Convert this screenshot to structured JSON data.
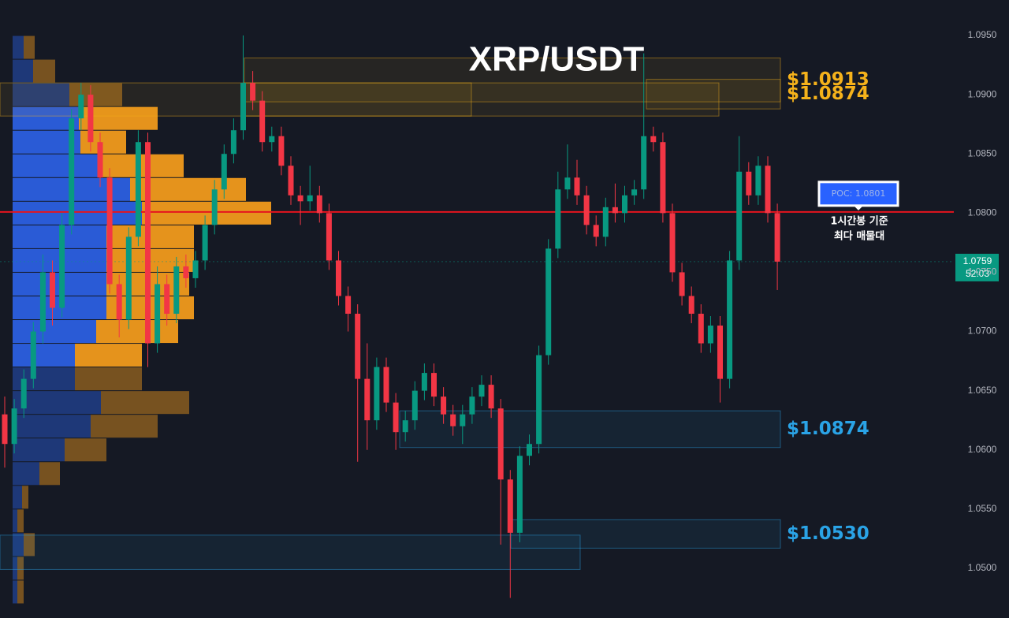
{
  "chart_data": {
    "type": "candlestick",
    "title": "XRP/USDT",
    "ylim": [
      1.0458,
      1.098
    ],
    "yticks": [
      {
        "value": 1.05,
        "label": "1.0500"
      },
      {
        "value": 1.055,
        "label": "1.0550"
      },
      {
        "value": 1.06,
        "label": "1.0600"
      },
      {
        "value": 1.065,
        "label": "1.0650"
      },
      {
        "value": 1.07,
        "label": "1.0700"
      },
      {
        "value": 1.075,
        "label": "1.0750"
      },
      {
        "value": 1.08,
        "label": "1.0800"
      },
      {
        "value": 1.085,
        "label": "1.0850"
      },
      {
        "value": 1.09,
        "label": "1.0900"
      },
      {
        "value": 1.095,
        "label": "1.0950"
      }
    ],
    "grid": false,
    "up_color": "#089981",
    "down_color": "#f23645",
    "open": [
      1.063,
      1.0605,
      1.0635,
      1.066,
      1.07,
      1.075,
      1.072,
      1.079,
      1.088,
      1.09,
      1.086,
      1.083,
      1.074,
      1.071,
      1.078,
      1.086,
      1.069,
      1.074,
      1.0715,
      1.0755,
      1.0745,
      1.076,
      1.079,
      1.082,
      1.085,
      1.087,
      1.091,
      1.0895,
      1.086,
      1.0865,
      1.084,
      1.0815,
      1.081,
      1.0815,
      1.08,
      1.076,
      1.073,
      1.0715,
      1.066,
      1.0625,
      1.067,
      1.064,
      1.0615,
      1.0625,
      1.065,
      1.0665,
      1.0645,
      1.063,
      1.062,
      1.063,
      1.0645,
      1.0655,
      1.0635,
      1.0575,
      1.053,
      1.0595,
      1.0605,
      1.068,
      1.077,
      1.082,
      1.083,
      1.0815,
      1.079,
      1.078,
      1.0805,
      1.08,
      1.0815,
      1.082,
      1.0865,
      1.086,
      1.08,
      1.075,
      1.073,
      1.0715,
      1.069,
      1.0705,
      1.066,
      1.076,
      1.0835,
      1.0815,
      1.084,
      1.08
    ],
    "high": [
      1.0645,
      1.0643,
      1.0668,
      1.0708,
      1.0765,
      1.076,
      1.08,
      1.0888,
      1.091,
      1.0908,
      1.0868,
      1.0838,
      1.0748,
      1.0788,
      1.087,
      1.0868,
      1.0755,
      1.0748,
      1.0763,
      1.0765,
      1.0768,
      1.0798,
      1.0828,
      1.0858,
      1.088,
      1.095,
      1.092,
      1.0903,
      1.0873,
      1.0873,
      1.0848,
      1.0823,
      1.084,
      1.0823,
      1.0808,
      1.0768,
      1.0738,
      1.0723,
      1.069,
      1.0678,
      1.0678,
      1.0648,
      1.0633,
      1.0658,
      1.0673,
      1.0673,
      1.0653,
      1.0638,
      1.0638,
      1.0653,
      1.0663,
      1.0663,
      1.0643,
      1.0583,
      1.0603,
      1.0613,
      1.0688,
      1.0778,
      1.0835,
      1.0858,
      1.0845,
      1.0823,
      1.0798,
      1.0813,
      1.0825,
      1.0823,
      1.0828,
      1.0935,
      1.0873,
      1.0868,
      1.0808,
      1.0758,
      1.0738,
      1.0723,
      1.0713,
      1.0713,
      1.0768,
      1.0865,
      1.0843,
      1.0848,
      1.0848,
      1.0808
    ],
    "low": [
      1.0585,
      1.0597,
      1.0627,
      1.0652,
      1.069,
      1.0705,
      1.0712,
      1.0782,
      1.087,
      1.0852,
      1.0822,
      1.0732,
      1.0695,
      1.0702,
      1.0772,
      1.067,
      1.0682,
      1.0705,
      1.0707,
      1.0737,
      1.0737,
      1.0752,
      1.0782,
      1.0812,
      1.0842,
      1.0862,
      1.0887,
      1.0852,
      1.0852,
      1.0832,
      1.0807,
      1.079,
      1.0802,
      1.0792,
      1.0752,
      1.0722,
      1.07,
      1.059,
      1.06,
      1.0617,
      1.0632,
      1.06,
      1.0607,
      1.0617,
      1.0642,
      1.0637,
      1.0622,
      1.0612,
      1.0605,
      1.0622,
      1.0637,
      1.0627,
      1.052,
      1.0475,
      1.0522,
      1.0587,
      1.0597,
      1.0672,
      1.0762,
      1.0812,
      1.0807,
      1.0782,
      1.0772,
      1.0772,
      1.0792,
      1.0792,
      1.0807,
      1.0812,
      1.0852,
      1.0792,
      1.0742,
      1.0722,
      1.0707,
      1.0682,
      1.0682,
      1.064,
      1.0652,
      1.0752,
      1.0807,
      1.0807,
      1.0792,
      1.0735
    ],
    "close": [
      1.0605,
      1.0635,
      1.066,
      1.07,
      1.075,
      1.072,
      1.079,
      1.088,
      1.09,
      1.086,
      1.083,
      1.074,
      1.071,
      1.078,
      1.086,
      1.069,
      1.074,
      1.0715,
      1.0755,
      1.0745,
      1.076,
      1.079,
      1.082,
      1.085,
      1.087,
      1.091,
      1.0895,
      1.086,
      1.0865,
      1.084,
      1.0815,
      1.081,
      1.0815,
      1.08,
      1.076,
      1.073,
      1.0715,
      1.066,
      1.0625,
      1.067,
      1.064,
      1.0615,
      1.0625,
      1.065,
      1.0665,
      1.0645,
      1.063,
      1.062,
      1.063,
      1.0645,
      1.0655,
      1.0635,
      1.0575,
      1.053,
      1.0595,
      1.0605,
      1.068,
      1.077,
      1.082,
      1.083,
      1.0815,
      1.079,
      1.078,
      1.0805,
      1.08,
      1.0815,
      1.082,
      1.0865,
      1.086,
      1.08,
      1.075,
      1.073,
      1.0715,
      1.069,
      1.0705,
      1.066,
      1.076,
      1.0835,
      1.0815,
      1.084,
      1.08,
      1.0759
    ],
    "volume_profile": {
      "bins": [
        1.095,
        1.093,
        1.091,
        1.089,
        1.087,
        1.085,
        1.083,
        1.081,
        1.079,
        1.077,
        1.075,
        1.073,
        1.071,
        1.069,
        1.067,
        1.065,
        1.063,
        1.061,
        1.059,
        1.057,
        1.055,
        1.053,
        1.051,
        1.049,
        1.047
      ],
      "buy": [
        14,
        26,
        72,
        84,
        86,
        112,
        149,
        164,
        119,
        119,
        119,
        119,
        106,
        79,
        79,
        112,
        99,
        66,
        34,
        12,
        6,
        14,
        6,
        6
      ],
      "sell": [
        14,
        28,
        67,
        100,
        58,
        105,
        147,
        164,
        111,
        111,
        105,
        111,
        104,
        85,
        85,
        112,
        85,
        53,
        26,
        8,
        8,
        14,
        8,
        8
      ],
      "value_area": [
        1.067,
        1.089
      ],
      "buy_color": "#2b5fe0",
      "sell_color": "#f09a1c"
    },
    "zones": [
      {
        "top": 1.0931,
        "bottom": 1.0894,
        "label": "$1.0913",
        "color": "#f5b21b"
      },
      {
        "top": 1.0913,
        "bottom": 1.0888,
        "label": "$1.0874",
        "color": "#f5b21b"
      },
      {
        "top": 1.091,
        "bottom": 1.0882,
        "color": "#f5b21b"
      },
      {
        "top": 1.091,
        "bottom": 1.0882,
        "color": "#f5b21b"
      },
      {
        "top": 1.0633,
        "bottom": 1.0602,
        "label": "$1.0874",
        "color": "#2aa3e6"
      },
      {
        "top": 1.0541,
        "bottom": 1.0517,
        "label": "$1.0530",
        "color": "#2aa3e6"
      },
      {
        "top": 1.0528,
        "bottom": 1.0499,
        "color": "#2aa3e6"
      }
    ],
    "poc": {
      "price": 1.0801,
      "label": "POC: 1.0801",
      "color": "#e5141e",
      "notes": [
        "1시간봉 기준",
        "최다 매물대"
      ]
    },
    "last_price": {
      "price": 1.0759,
      "countdown": "52:03"
    }
  }
}
